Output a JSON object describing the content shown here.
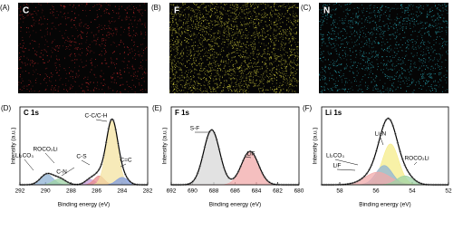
{
  "maps": [
    {
      "label": "(A)",
      "element": "C",
      "color": "#c0282a"
    },
    {
      "label": "(B)",
      "element": "F",
      "color": "#c9c43a"
    },
    {
      "label": "(C)",
      "element": "N",
      "color": "#2aa6b4"
    }
  ],
  "chart_data": [
    {
      "type": "xps",
      "panel": "(D)",
      "title": "C 1s",
      "xlabel": "Binding energy (eV)",
      "ylabel": "Intensity (a.u.)",
      "xlim": [
        292,
        282
      ],
      "xticks": [
        292,
        290,
        288,
        286,
        284,
        282
      ],
      "ylim": [
        0,
        1
      ],
      "peaks": [
        {
          "name": "Li₂CO₃",
          "center": 289.9,
          "height": 0.14,
          "width": 0.5,
          "color": "#8fb3d6"
        },
        {
          "name": "ROCO₂Li",
          "center": 288.9,
          "height": 0.08,
          "width": 0.5,
          "color": "#9fd4a6"
        },
        {
          "name": "C-N",
          "center": 286.5,
          "height": 0.07,
          "width": 0.4,
          "color": "#c79ad8"
        },
        {
          "name": "C-S",
          "center": 285.8,
          "height": 0.12,
          "width": 0.4,
          "color": "#e98b8b"
        },
        {
          "name": "C-C/C-H",
          "center": 284.8,
          "height": 0.86,
          "width": 0.45,
          "color": "#f4e3a1"
        },
        {
          "name": "C=C",
          "center": 284.0,
          "height": 0.1,
          "width": 0.45,
          "color": "#7f9be0"
        }
      ]
    },
    {
      "type": "xps",
      "panel": "(E)",
      "title": "F 1s",
      "xlabel": "Binding energy (eV)",
      "ylabel": "Intensity (a.u.)",
      "xlim": [
        692,
        680
      ],
      "xticks": [
        692,
        690,
        688,
        686,
        684,
        682,
        680
      ],
      "ylim": [
        0,
        1
      ],
      "peaks": [
        {
          "name": "S-F",
          "center": 688.2,
          "height": 0.74,
          "width": 0.75,
          "color": "#d8d8d8"
        },
        {
          "name": "LiF",
          "center": 684.6,
          "height": 0.45,
          "width": 0.8,
          "color": "#f1a9a9"
        }
      ]
    },
    {
      "type": "xps",
      "panel": "(F)",
      "title": "Li 1s",
      "xlabel": "Binding energy (eV)",
      "ylabel": "Intensity (a.u.)",
      "xlim": [
        59,
        52
      ],
      "xticks": [
        58,
        56,
        54,
        52
      ],
      "ylim": [
        0,
        1
      ],
      "peaks": [
        {
          "name": "Li₃N",
          "center": 55.2,
          "height": 0.55,
          "width": 0.45,
          "color": "#f6ec8a"
        },
        {
          "name": "Li₂CO₃",
          "center": 55.55,
          "height": 0.26,
          "width": 0.45,
          "color": "#8fb3d6"
        },
        {
          "name": "LiF",
          "center": 55.9,
          "height": 0.17,
          "width": 0.7,
          "color": "#f1a9a9"
        },
        {
          "name": "ROCO₂Li",
          "center": 54.4,
          "height": 0.12,
          "width": 0.45,
          "color": "#9fd4a6"
        }
      ]
    }
  ]
}
